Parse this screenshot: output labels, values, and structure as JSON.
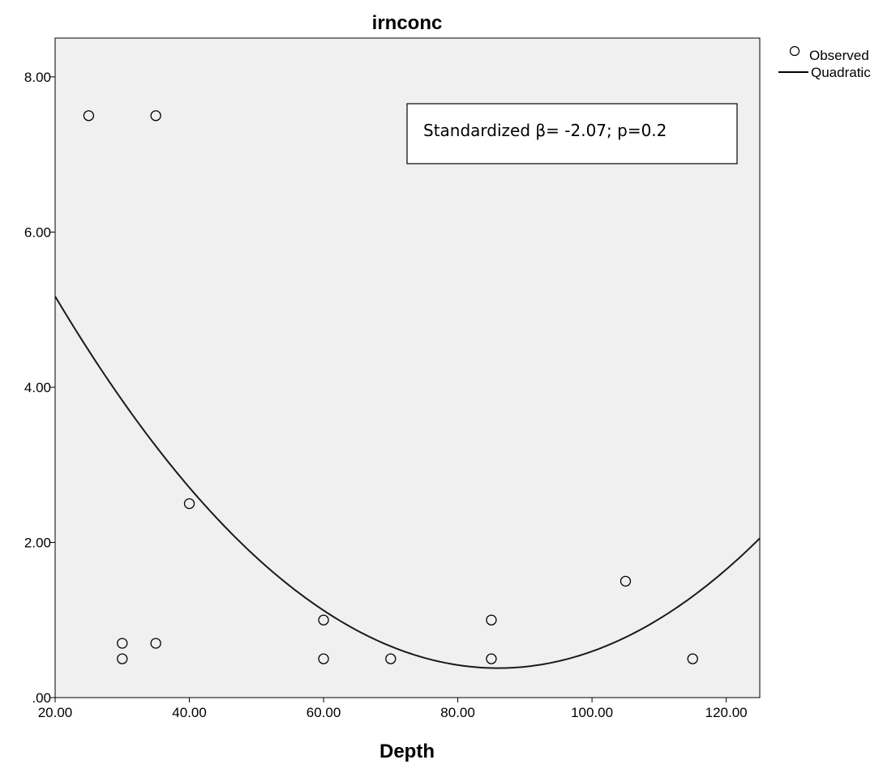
{
  "chart_data": {
    "type": "scatter",
    "title": "irnconc",
    "xlabel": "Depth",
    "ylabel": "",
    "xlim": [
      20,
      125
    ],
    "ylim": [
      0,
      8.5
    ],
    "x_ticks": [
      20,
      40,
      60,
      80,
      100,
      120
    ],
    "x_tick_labels": [
      "20.00",
      "40.00",
      "60.00",
      "80.00",
      "100.00",
      "120.00"
    ],
    "y_ticks": [
      0,
      2,
      4,
      6,
      8
    ],
    "y_tick_labels": [
      ".00",
      "2.00",
      "4.00",
      "6.00",
      "8.00"
    ],
    "grid": false,
    "plot_background": "#f0f0f0",
    "legend_position": "top-right outside plot",
    "series": [
      {
        "name": "Observed",
        "kind": "points",
        "marker": "open-circle",
        "points": [
          {
            "x": 25,
            "y": 7.5
          },
          {
            "x": 35,
            "y": 7.5
          },
          {
            "x": 40,
            "y": 2.5
          },
          {
            "x": 30,
            "y": 0.7
          },
          {
            "x": 30,
            "y": 0.5
          },
          {
            "x": 35,
            "y": 0.7
          },
          {
            "x": 60,
            "y": 1.0
          },
          {
            "x": 60,
            "y": 0.5
          },
          {
            "x": 70,
            "y": 0.5
          },
          {
            "x": 85,
            "y": 1.0
          },
          {
            "x": 85,
            "y": 0.5
          },
          {
            "x": 105,
            "y": 1.5
          },
          {
            "x": 115,
            "y": 0.5
          }
        ]
      },
      {
        "name": "Quadratic",
        "kind": "fit-line",
        "equation": "y = 0.0011*(x - 86)^2 + 0.38",
        "coefficients": {
          "a": 0.0011,
          "h": 86,
          "k": 0.38
        }
      }
    ],
    "annotation": "Standardized β= -2.07; p=0.2"
  }
}
